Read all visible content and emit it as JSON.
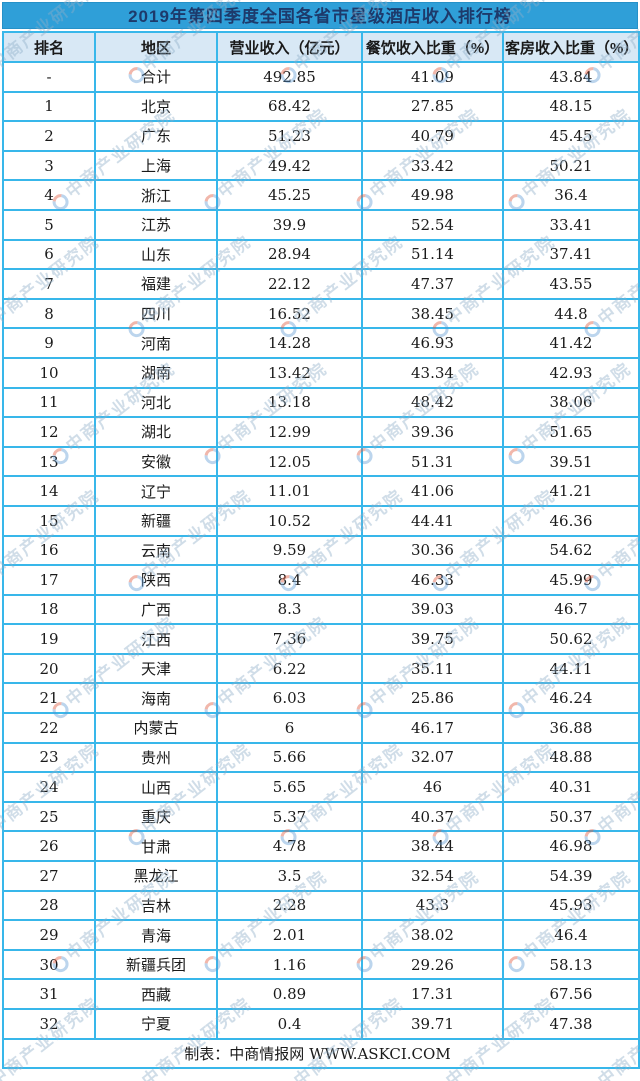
{
  "title": "2019年第四季度全国各省市星级酒店收入排行榜",
  "footer": {
    "credit": "制表：中商情报网 WWW.ASKCI.COM"
  },
  "watermark": {
    "text": "中商产业研究院"
  },
  "colors": {
    "title_bg": "#2f9fd8",
    "title_text": "#1d3a6b",
    "header_bg": "#d8e8f5",
    "border": "#38b7ea"
  },
  "chart_data": {
    "type": "table",
    "title": "2019年第四季度全国各省市星级酒店收入排行榜",
    "columns": [
      "排名",
      "地区",
      "营业收入（亿元）",
      "餐饮收入比重（%）",
      "客房收入比重（%）"
    ],
    "column_keys": [
      "rank",
      "region",
      "revenue",
      "fb_share",
      "room_share"
    ],
    "rows": [
      [
        "-",
        "合计",
        "492.85",
        "41.09",
        "43.84"
      ],
      [
        "1",
        "北京",
        "68.42",
        "27.85",
        "48.15"
      ],
      [
        "2",
        "广东",
        "51.23",
        "40.79",
        "45.45"
      ],
      [
        "3",
        "上海",
        "49.42",
        "33.42",
        "50.21"
      ],
      [
        "4",
        "浙江",
        "45.25",
        "49.98",
        "36.4"
      ],
      [
        "5",
        "江苏",
        "39.9",
        "52.54",
        "33.41"
      ],
      [
        "6",
        "山东",
        "28.94",
        "51.14",
        "37.41"
      ],
      [
        "7",
        "福建",
        "22.12",
        "47.37",
        "43.55"
      ],
      [
        "8",
        "四川",
        "16.52",
        "38.45",
        "44.8"
      ],
      [
        "9",
        "河南",
        "14.28",
        "46.93",
        "41.42"
      ],
      [
        "10",
        "湖南",
        "13.42",
        "43.34",
        "42.93"
      ],
      [
        "11",
        "河北",
        "13.18",
        "48.42",
        "38.06"
      ],
      [
        "12",
        "湖北",
        "12.99",
        "39.36",
        "51.65"
      ],
      [
        "13",
        "安徽",
        "12.05",
        "51.31",
        "39.51"
      ],
      [
        "14",
        "辽宁",
        "11.01",
        "41.06",
        "41.21"
      ],
      [
        "15",
        "新疆",
        "10.52",
        "44.41",
        "46.36"
      ],
      [
        "16",
        "云南",
        "9.59",
        "30.36",
        "54.62"
      ],
      [
        "17",
        "陕西",
        "8.4",
        "46.33",
        "45.99"
      ],
      [
        "18",
        "广西",
        "8.3",
        "39.03",
        "46.7"
      ],
      [
        "19",
        "江西",
        "7.36",
        "39.75",
        "50.62"
      ],
      [
        "20",
        "天津",
        "6.22",
        "35.11",
        "44.11"
      ],
      [
        "21",
        "海南",
        "6.03",
        "25.86",
        "46.24"
      ],
      [
        "22",
        "内蒙古",
        "6",
        "46.17",
        "36.88"
      ],
      [
        "23",
        "贵州",
        "5.66",
        "32.07",
        "48.88"
      ],
      [
        "24",
        "山西",
        "5.65",
        "46",
        "40.31"
      ],
      [
        "25",
        "重庆",
        "5.37",
        "40.37",
        "50.37"
      ],
      [
        "26",
        "甘肃",
        "4.78",
        "38.44",
        "46.98"
      ],
      [
        "27",
        "黑龙江",
        "3.5",
        "32.54",
        "54.39"
      ],
      [
        "28",
        "吉林",
        "2.28",
        "43.3",
        "45.93"
      ],
      [
        "29",
        "青海",
        "2.01",
        "38.02",
        "46.4"
      ],
      [
        "30",
        "新疆兵团",
        "1.16",
        "29.26",
        "58.13"
      ],
      [
        "31",
        "西藏",
        "0.89",
        "17.31",
        "67.56"
      ],
      [
        "32",
        "宁夏",
        "0.4",
        "39.71",
        "47.38"
      ]
    ]
  }
}
